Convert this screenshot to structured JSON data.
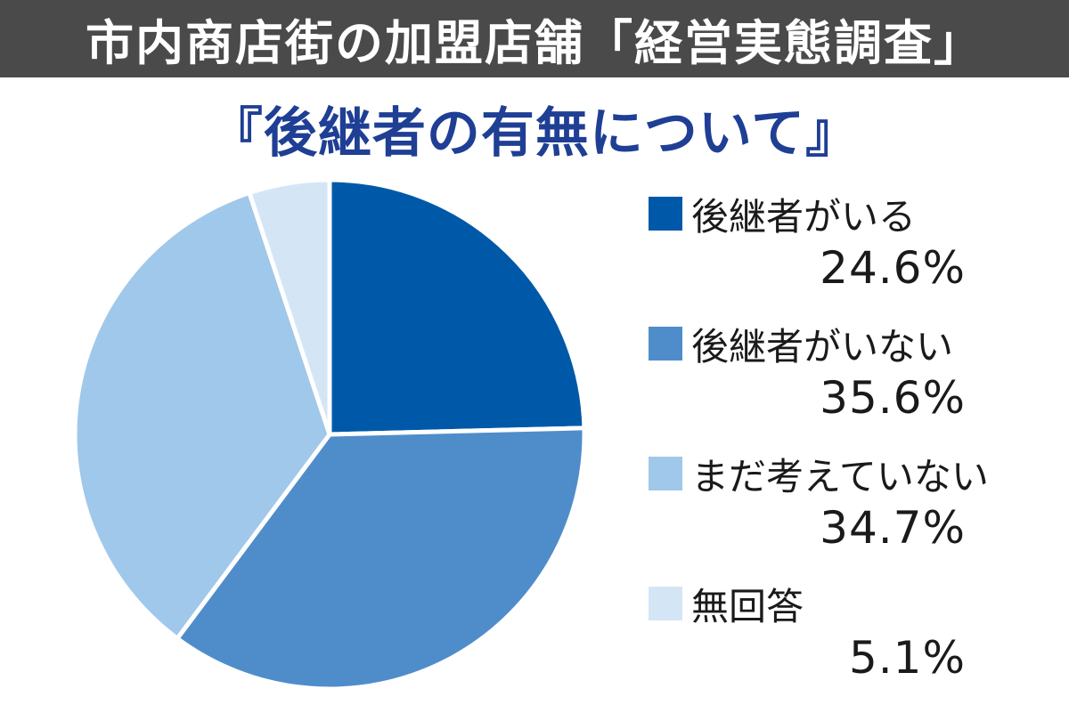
{
  "header": {
    "title": "市内商店街の加盟店舗「経営実態調査」"
  },
  "chart_data": {
    "type": "pie",
    "title": "『後継者の有無について』",
    "unit": "%",
    "legend_position": "right",
    "slices": [
      {
        "label": "後継者がいる",
        "value": 24.6,
        "value_label": "24.6%",
        "color": "#0059a8"
      },
      {
        "label": "後継者がいない",
        "value": 35.6,
        "value_label": "35.6%",
        "color": "#4f8dca"
      },
      {
        "label": "まだ考えていない",
        "value": 34.7,
        "value_label": "34.7%",
        "color": "#a0c8ea"
      },
      {
        "label": "無回答",
        "value": 5.1,
        "value_label": "5.1%",
        "color": "#d4e6f6"
      }
    ]
  }
}
